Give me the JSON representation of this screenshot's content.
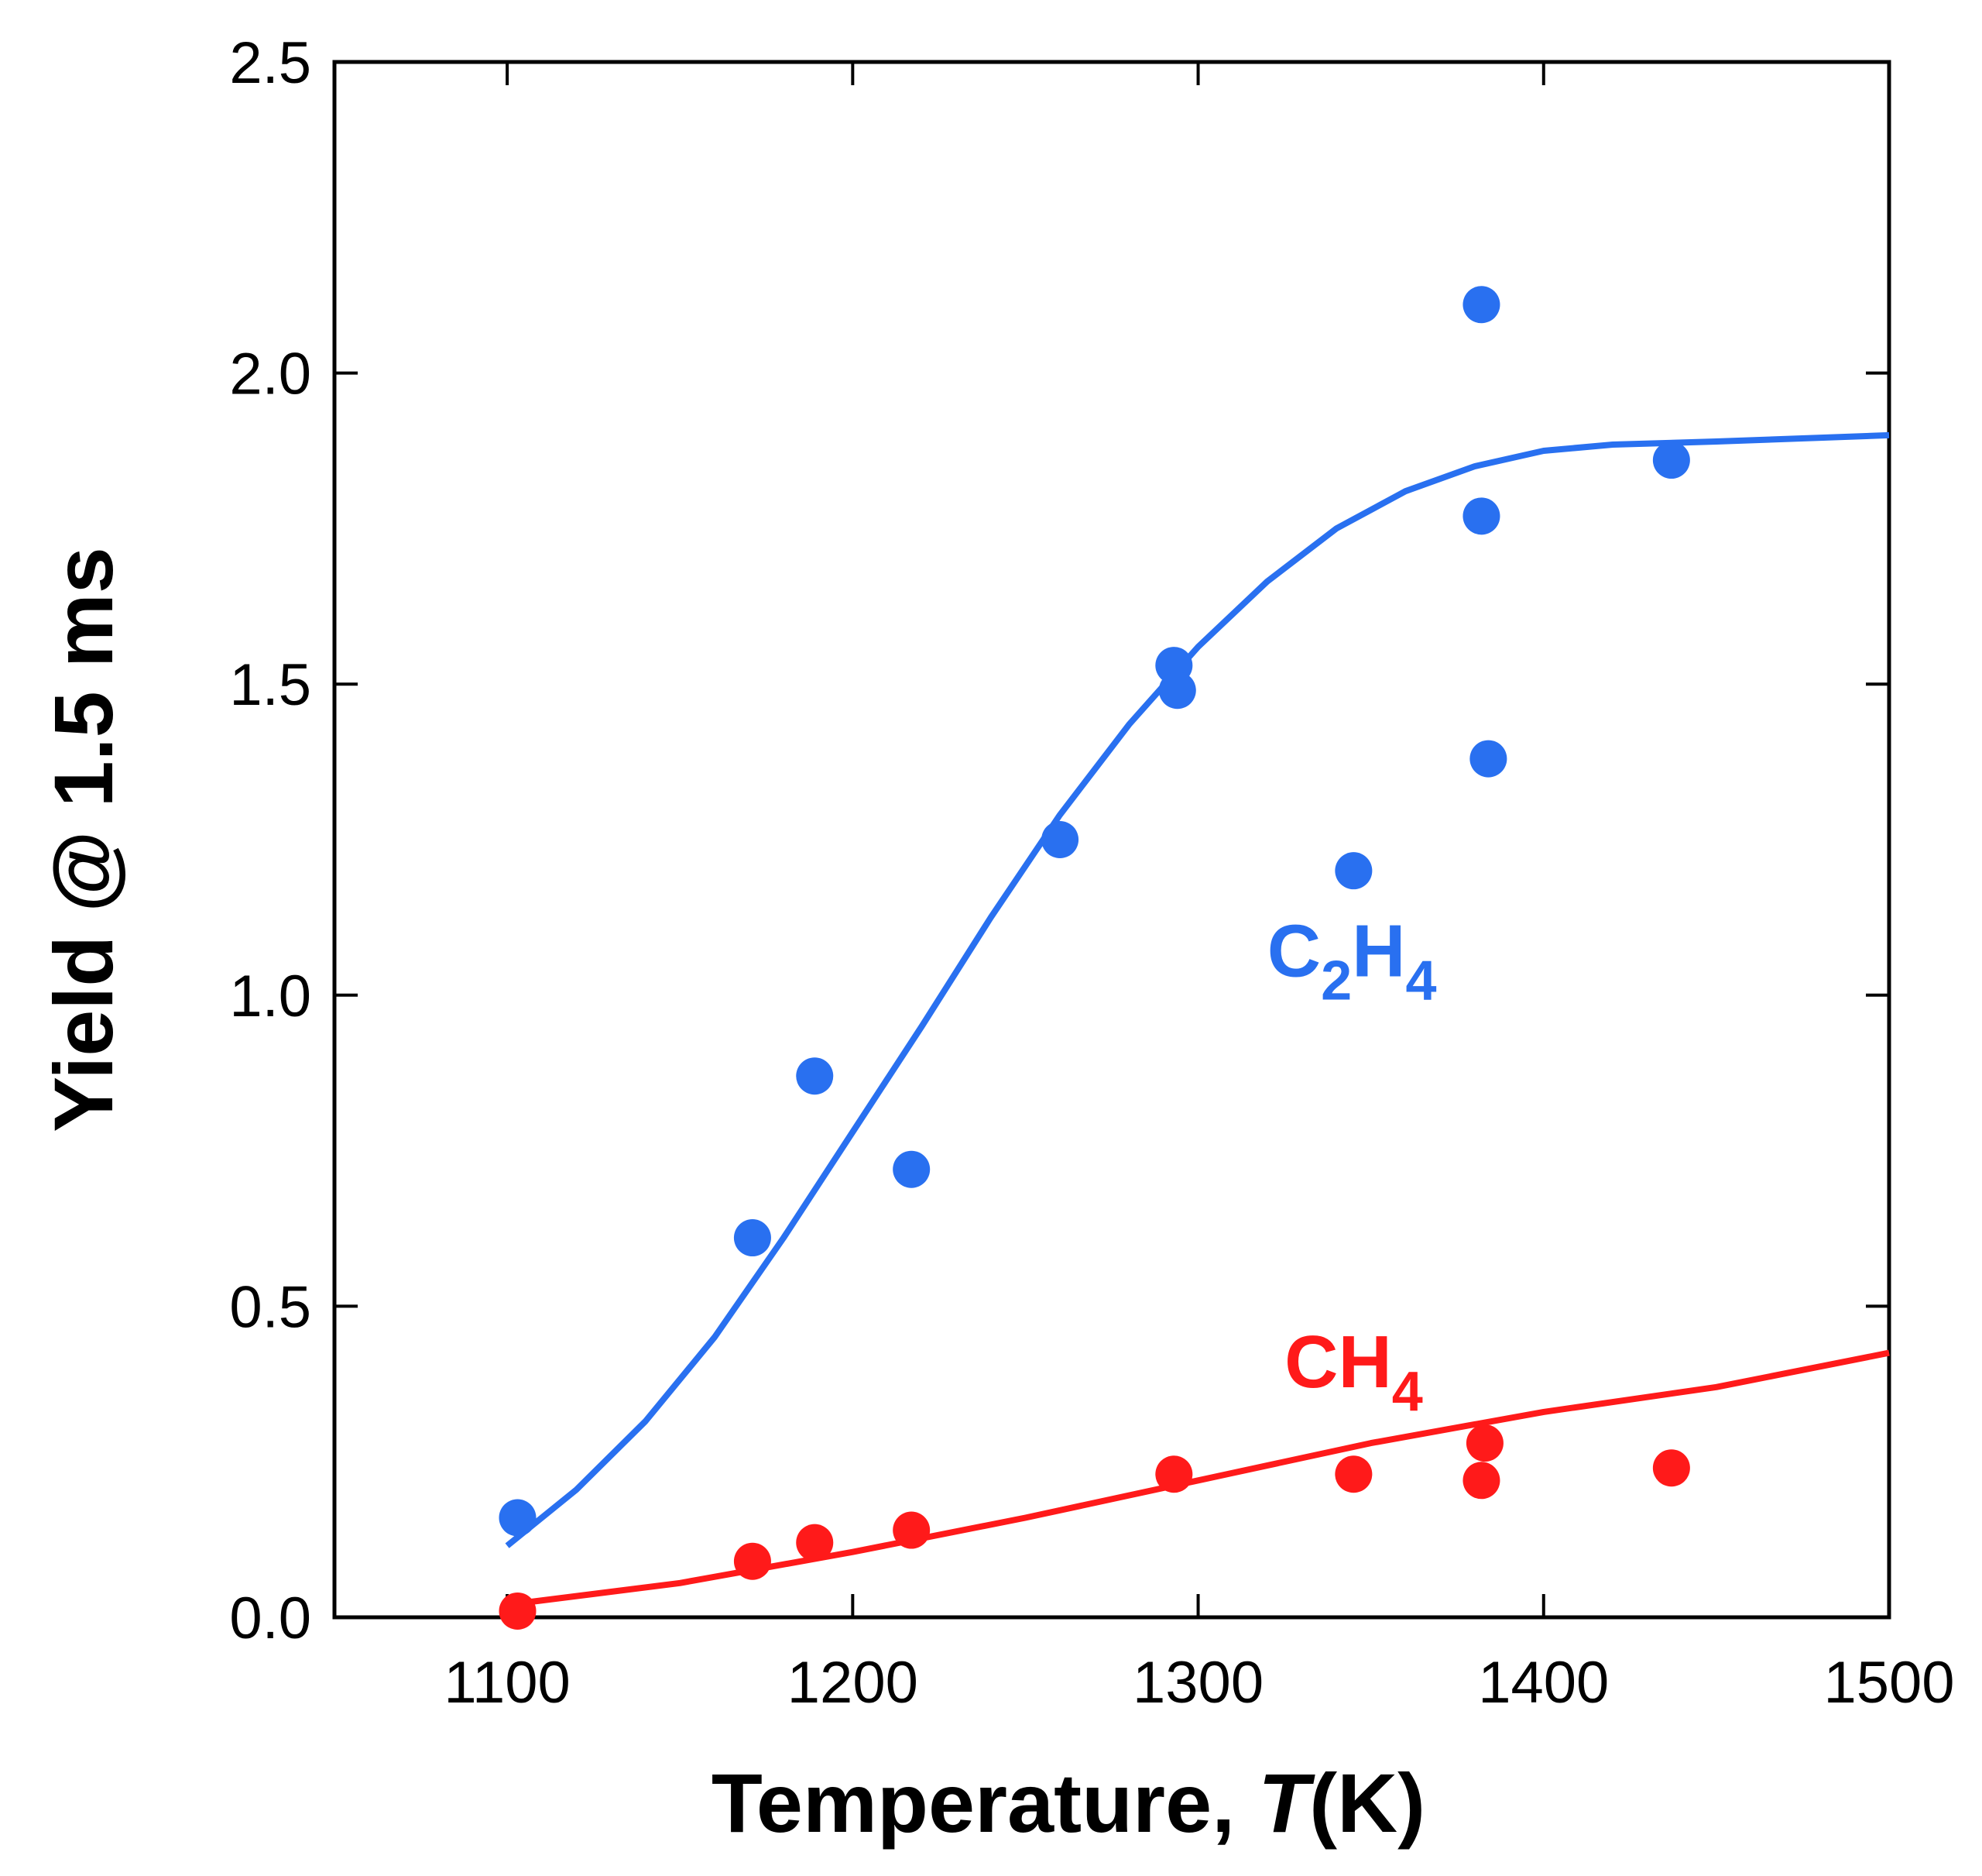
{
  "chart_data": {
    "type": "scatter",
    "title": "",
    "xlabel_main": "Temperature, ",
    "xlabel_italic": "T",
    "xlabel_unit": "(K)",
    "ylabel": "Yield @ 1.5 ms",
    "xlim": [
      1050,
      1500
    ],
    "ylim": [
      0,
      2.5
    ],
    "x_ticks": [
      1100,
      1200,
      1300,
      1400,
      1500
    ],
    "x_tick_labels": [
      "1100",
      "1200",
      "1300",
      "1400",
      "1500"
    ],
    "y_ticks": [
      0,
      0.5,
      1.0,
      1.5,
      2.0,
      2.5
    ],
    "y_tick_labels": [
      "0.0",
      "0.5",
      "1.0",
      "1.5",
      "2.0",
      "2.5"
    ],
    "grid": false,
    "series": [
      {
        "name": "C2H4",
        "label_main": "C",
        "label_sub1": "2",
        "label_mid": "H",
        "label_sub2": "4",
        "color": "#2970f0",
        "label_at": [
          1320,
          1.03
        ],
        "points": [
          [
            1103,
            0.16
          ],
          [
            1171,
            0.61
          ],
          [
            1189,
            0.87
          ],
          [
            1217,
            0.72
          ],
          [
            1260,
            1.25
          ],
          [
            1293,
            1.53
          ],
          [
            1294,
            1.49
          ],
          [
            1345,
            1.2
          ],
          [
            1382,
            2.11
          ],
          [
            1382,
            1.77
          ],
          [
            1384,
            1.38
          ],
          [
            1437,
            1.86
          ]
        ],
        "fit": [
          [
            1100,
            0.115
          ],
          [
            1120,
            0.205
          ],
          [
            1140,
            0.315
          ],
          [
            1160,
            0.45
          ],
          [
            1180,
            0.61
          ],
          [
            1200,
            0.78
          ],
          [
            1220,
            0.95
          ],
          [
            1240,
            1.125
          ],
          [
            1260,
            1.29
          ],
          [
            1280,
            1.435
          ],
          [
            1300,
            1.56
          ],
          [
            1320,
            1.665
          ],
          [
            1340,
            1.75
          ],
          [
            1360,
            1.81
          ],
          [
            1380,
            1.85
          ],
          [
            1400,
            1.875
          ],
          [
            1420,
            1.885
          ],
          [
            1450,
            1.89
          ],
          [
            1500,
            1.9
          ]
        ]
      },
      {
        "name": "CH4",
        "label_main": "CH",
        "label_sub1": "4",
        "label_mid": "",
        "label_sub2": "",
        "color": "#ff1a1a",
        "label_at": [
          1325,
          0.37
        ],
        "points": [
          [
            1103,
            0.01
          ],
          [
            1171,
            0.09
          ],
          [
            1189,
            0.12
          ],
          [
            1217,
            0.14
          ],
          [
            1293,
            0.23
          ],
          [
            1345,
            0.23
          ],
          [
            1382,
            0.22
          ],
          [
            1383,
            0.28
          ],
          [
            1437,
            0.24
          ]
        ],
        "fit": [
          [
            1100,
            0.02
          ],
          [
            1150,
            0.055
          ],
          [
            1200,
            0.105
          ],
          [
            1250,
            0.16
          ],
          [
            1300,
            0.22
          ],
          [
            1350,
            0.28
          ],
          [
            1400,
            0.33
          ],
          [
            1450,
            0.37
          ],
          [
            1500,
            0.425
          ]
        ]
      }
    ]
  }
}
